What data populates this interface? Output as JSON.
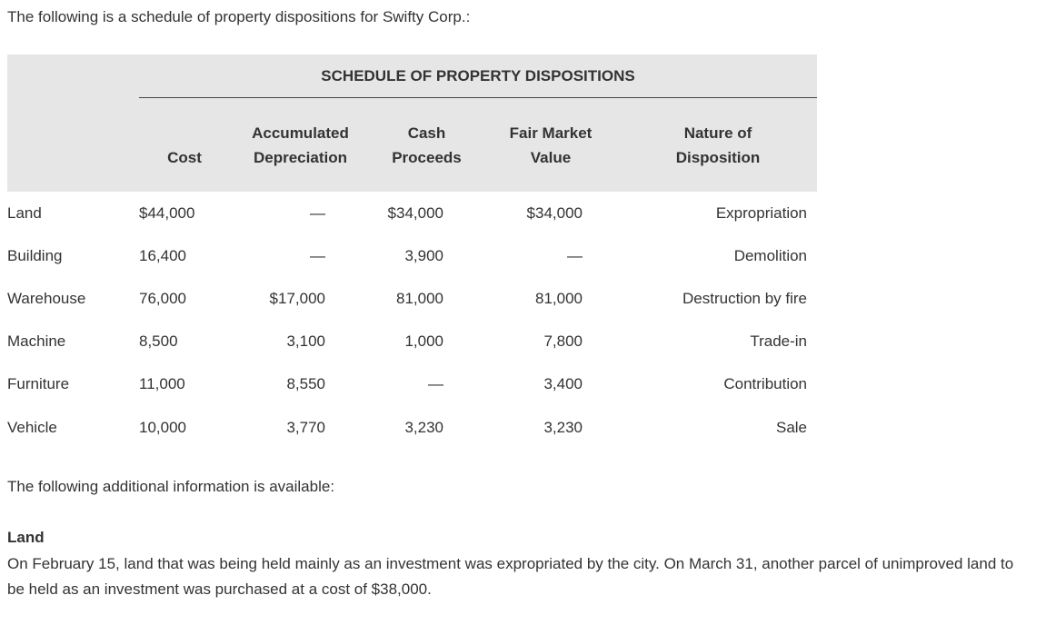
{
  "intro": "The following is a schedule of property dispositions for Swifty Corp.:",
  "table": {
    "title": "SCHEDULE OF PROPERTY DISPOSITIONS",
    "headers": [
      [
        "Cost"
      ],
      [
        "Accumulated",
        "Depreciation"
      ],
      [
        "Cash",
        "Proceeds"
      ],
      [
        "Fair Market",
        "Value"
      ],
      [
        "Nature of",
        "Disposition"
      ]
    ],
    "rows": [
      {
        "label": "Land",
        "cost": "$44,000",
        "accum_dep": "—",
        "cash": "$34,000",
        "fmv": "$34,000",
        "nature": "Expropriation"
      },
      {
        "label": "Building",
        "cost": "16,400",
        "accum_dep": "—",
        "cash": "3,900",
        "fmv": "—",
        "nature": "Demolition"
      },
      {
        "label": "Warehouse",
        "cost": "76,000",
        "accum_dep": "$17,000",
        "cash": "81,000",
        "fmv": "81,000",
        "nature": "Destruction by fire"
      },
      {
        "label": "Machine",
        "cost": "8,500",
        "accum_dep": "3,100",
        "cash": "1,000",
        "fmv": "7,800",
        "nature": "Trade-in"
      },
      {
        "label": "Furniture",
        "cost": "11,000",
        "accum_dep": "8,550",
        "cash": "—",
        "fmv": "3,400",
        "nature": "Contribution"
      },
      {
        "label": "Vehicle",
        "cost": "10,000",
        "accum_dep": "3,770",
        "cash": "3,230",
        "fmv": "3,230",
        "nature": "Sale"
      }
    ]
  },
  "additional_intro": "The following additional information is available:",
  "land_section": {
    "heading": "Land",
    "body": "On February 15, land that was being held mainly as an investment was expropriated by the city. On March 31, another parcel of unimproved land to be held as an investment was purchased at a cost of $38,000."
  }
}
